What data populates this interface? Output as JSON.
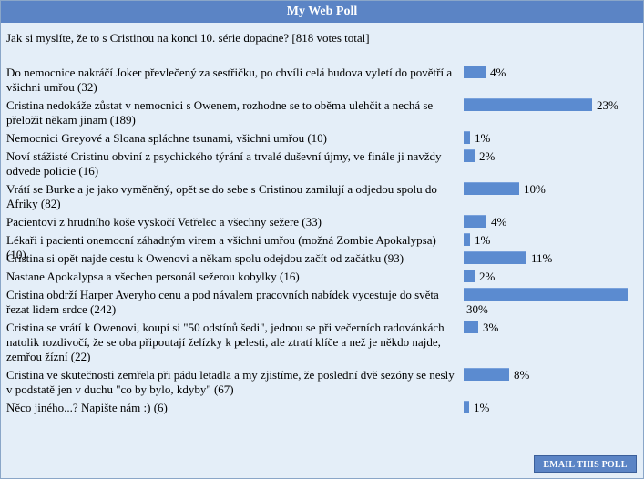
{
  "poll": {
    "title": "My Web Poll",
    "question": "Jak si myslíte, že to s Cristinou na konci 10. série dopadne? [818 votes total]",
    "email_button": "EMAIL THIS POLL",
    "bar_color": "#5b8bd0",
    "header_color": "#5b84c5",
    "options": [
      {
        "label": "Do nemocnice nakráčí Joker převlečený za sestřičku, po chvíli celá budova vyletí do povětří a všichni umřou (32)",
        "votes": 32,
        "percent": "4%"
      },
      {
        "label": "Cristina nedokáže zůstat v nemocnici s Owenem, rozhodne se to oběma ulehčit a nechá se přeložit někam jinam (189)",
        "votes": 189,
        "percent": "23%"
      },
      {
        "label": "Nemocnici Greyové a Sloana spláchne tsunami, všichni umřou (10)",
        "votes": 10,
        "percent": "1%"
      },
      {
        "label": "Noví stážisté Cristinu obviní z psychického týrání a trvalé duševní újmy, ve finále ji navždy odvede policie (16)",
        "votes": 16,
        "percent": "2%"
      },
      {
        "label": "Vrátí se Burke a je jako vyměněný, opět se do sebe s Cristinou zamilují a odjedou spolu do Afriky (82)",
        "votes": 82,
        "percent": "10%"
      },
      {
        "label": "Pacientovi z hrudního koše vyskočí Vetřelec a všechny sežere (33)",
        "votes": 33,
        "percent": "4%"
      },
      {
        "label": "Lékaři i pacienti onemocní záhadným virem a všichni umřou (možná Zombie Apokalypsa) (10)",
        "votes": 10,
        "percent": "1%"
      },
      {
        "label": "Cristina si opět najde cestu k Owenovi a někam spolu odejdou začít od začátku (93)",
        "votes": 93,
        "percent": "11%"
      },
      {
        "label": "Nastane Apokalypsa a všechen personál sežerou kobylky (16)",
        "votes": 16,
        "percent": "2%"
      },
      {
        "label": "Cristina obdrží Harper Averyho cenu a pod návalem pracovních nabídek vycestuje do světa řezat lidem srdce (242)",
        "votes": 242,
        "percent": "30%"
      },
      {
        "label": "Cristina se vrátí k Owenovi, koupí si \"50 odstínů šedi\", jednou se při večerních radovánkách natolik rozdivočí, že se oba připoutají želízky k pelesti, ale ztratí klíče a než je někdo najde, zemřou žízní (22)",
        "votes": 22,
        "percent": "3%"
      },
      {
        "label": "Cristina ve skutečnosti zemřela při pádu letadla a my zjistíme, že poslední dvě sezóny se nesly v podstatě jen v duchu \"co by bylo, kdyby\" (67)",
        "votes": 67,
        "percent": "8%"
      },
      {
        "label": "Něco jiného...? Napište nám :) (6)",
        "votes": 6,
        "percent": "1%"
      }
    ]
  }
}
